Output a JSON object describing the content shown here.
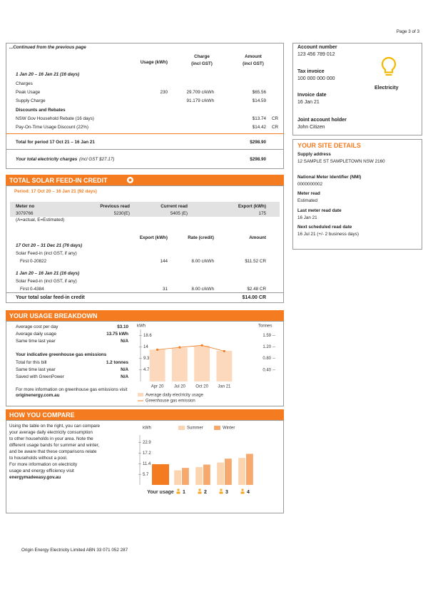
{
  "page_label": "Page 3 of 3",
  "charges": {
    "continued": "...Continued from the previous page",
    "col_usage": "Usage (kWh)",
    "col_charge": [
      "Charge",
      "(incl GST)"
    ],
    "col_amount": [
      "Amount",
      "(incl GST)"
    ],
    "period": "1 Jan 20 – 16 Jan 21 (16 days)",
    "charges_label": "Charges",
    "rows": [
      {
        "label": "Peak Usage",
        "usage": "230",
        "rate": "29.709 c/kWh",
        "amount": "$65.56"
      },
      {
        "label": "Supply Charge",
        "rate": "91.179 c/kWh",
        "amount": "$14.59"
      }
    ],
    "discounts_label": "Discounts and Rebates",
    "discount_rows": [
      {
        "label": "NSW Gov Household Rebate (16 days)",
        "amount": "$13.74",
        "cr": "CR"
      },
      {
        "label": "Pay-On-Time Usage Discount (22%)",
        "amount": "$14.42",
        "cr": "CR"
      }
    ],
    "total_period": {
      "label": "Total for period 17 Oct 21 – 16 Jan 21",
      "amount": "$298.90"
    },
    "total": {
      "label": "Your total electricity charges",
      "note": "(incl GST $27.17)",
      "amount": "$298.90"
    }
  },
  "account": {
    "items": [
      {
        "label": "Account number",
        "value": "123 456 789 012"
      },
      {
        "label": "Tax invoice",
        "value": "100 000 000 000"
      },
      {
        "label": "Invoice date",
        "value": "16 Jan 21"
      },
      {
        "label": "Joint account holder",
        "value": "John Citizen"
      }
    ],
    "fuel": "Electricity"
  },
  "site": {
    "title": "YOUR SITE DETAILS",
    "items": [
      {
        "label": "Supply address",
        "value": "12 SAMPLE ST SAMPLETOWN NSW 2160"
      },
      {
        "label": "National Meter Identifier (NMI)",
        "value": "0000000002"
      },
      {
        "label": "Meter read",
        "value": "Estimated"
      },
      {
        "label": "Last meter read date",
        "value": "16 Jan 21"
      },
      {
        "label": "Next scheduled read date",
        "value": "16 Jul 21 (+/- 2 business days)"
      }
    ]
  },
  "solar": {
    "title": "TOTAL SOLAR FEED-IN CREDIT",
    "period": "Period: 17 Oct 20 – 16 Jan 21 (92 days)",
    "meter_headers": [
      "Meter no",
      "Previous read",
      "Current read",
      "Export (kWh)"
    ],
    "meter_row": [
      "3079766",
      "5230(E)",
      "5405 (E)",
      "175"
    ],
    "meter_note": "(A=actual, E=Estimated)",
    "rate_headers": [
      "Export (kWh)",
      "Rate (credit)",
      "Amount"
    ],
    "blocks": [
      {
        "period": "17 Oct 20 – 31 Dec 21 (76 days)",
        "desc": "Solar Feed-in (incl GST, if any)",
        "first": "First 0-20822",
        "export": "144",
        "rate": "8.00 c/kWh",
        "amount": "$11.52 CR"
      },
      {
        "period": "1 Jan 20 – 16 Jan 21 (16 days)",
        "desc": "Solar Feed-in (incl GST, if any)",
        "first": "First 0-4384",
        "export": "31",
        "rate": "8.00 c/kWh",
        "amount": "$2.48 CR"
      }
    ],
    "total": {
      "label": "Your total solar feed-in credit",
      "amount": "$14.00 CR"
    }
  },
  "usage": {
    "title": "YOUR USAGE BREAKDOWN",
    "stats": [
      [
        "Average cost per day",
        "$3.10"
      ],
      [
        "Average daily usage",
        "13.75 kWh"
      ],
      [
        "Same time last year",
        "N/A"
      ]
    ],
    "ghg_title": "Your indicative greenhouse gas emissions",
    "ghg_stats": [
      [
        "Total for this bill",
        "1.2 tonnes"
      ],
      [
        "Same time last year",
        "N/A"
      ],
      [
        "Saved with GreenPower",
        "N/A"
      ]
    ],
    "info": "For more information on greenhouse gas emissions visit",
    "info_link": "originenergy.com.au",
    "chart": {
      "type": "bar",
      "y_label": "kWh",
      "y2_label": "Tonnes",
      "categories": [
        "Apr 20",
        "Jul 20",
        "Oct 20",
        "Jan 21"
      ],
      "ylim": [
        0,
        21
      ],
      "yticks": [
        4.7,
        9.3,
        14.0,
        18.6
      ],
      "y2lim": [
        0,
        1.8
      ],
      "y2ticks": [
        {
          "value": 0.4,
          "label": "0.40"
        },
        {
          "value": 0.8,
          "label": "0.80"
        },
        {
          "value": 1.2,
          "label": "1.20"
        },
        1.59
      ],
      "series": [
        {
          "name": "Average daily electricity usage",
          "color": "#fcd9bd",
          "values": [
            12.9,
            13.6,
            14.4,
            12.4
          ]
        },
        {
          "name": "Greenhouse gas emission",
          "color": "#f47b20",
          "axis": "y2",
          "values": [
            1.1,
            1.18,
            1.25,
            1.05
          ]
        }
      ]
    }
  },
  "compare": {
    "title": "HOW YOU COMPARE",
    "text": [
      "Using the table on the right, you can compare",
      "your average daily electricity consumption",
      "to other households in your area. Note the",
      "different usage bands for summer and winter,",
      "and be aware that these comparisons relate",
      "to households without a pool.",
      "For more information on electricity",
      "usage and energy efficiency visit"
    ],
    "link": "energymadeeasy.gov.au",
    "chart": {
      "type": "bar",
      "y_label": "kWh",
      "categories": [
        "Your usage",
        "1",
        "2",
        "3",
        "4"
      ],
      "ylim": [
        0,
        27
      ],
      "yticks": [
        5.7,
        11.4,
        17.2,
        22.9
      ],
      "your_usage": 11.2,
      "your_usage_color": "#f47b20",
      "series": [
        {
          "name": "Summer",
          "color": "#fbd4b0",
          "values": [
            null,
            7.9,
            9.6,
            12.1,
            14.6
          ]
        },
        {
          "name": "Winter",
          "color": "#f7a86c",
          "values": [
            null,
            9.2,
            11.0,
            14.2,
            16.8
          ]
        }
      ]
    }
  },
  "footer": "Origin Energy Electricity Limited ABN 33 071 052 287"
}
